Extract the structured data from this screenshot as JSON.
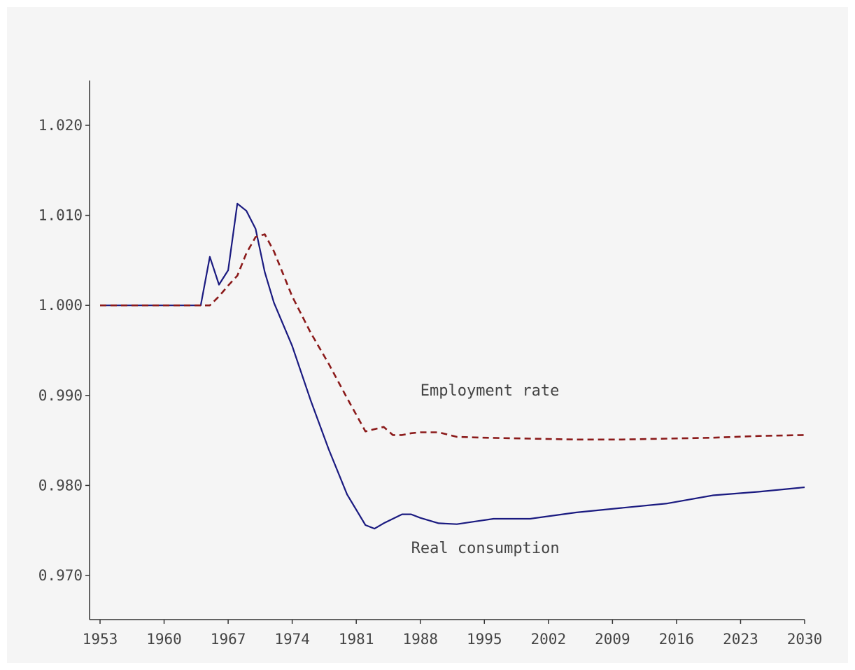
{
  "chart_data": {
    "type": "line",
    "title": "",
    "xlabel": "",
    "ylabel": "",
    "xlim": [
      1952,
      2031
    ],
    "ylim": [
      0.965,
      1.025
    ],
    "xticks": [
      1953,
      1960,
      1967,
      1974,
      1981,
      1988,
      1995,
      2002,
      2009,
      2016,
      2023,
      2030
    ],
    "yticks": [
      0.97,
      0.98,
      0.99,
      1.0,
      1.01,
      1.02
    ],
    "ytick_labels": [
      "0.970",
      "0.980",
      "0.990",
      "1.000",
      "1.010",
      "1.020"
    ],
    "grid": false,
    "legend": "none",
    "series": [
      {
        "name": "Real consumption",
        "color": "#1a1a80",
        "style": "solid",
        "x": [
          1953,
          1964,
          1965,
          1966,
          1967,
          1968,
          1969,
          1970,
          1971,
          1972,
          1974,
          1976,
          1978,
          1980,
          1982,
          1983,
          1984,
          1986,
          1987,
          1988,
          1990,
          1992,
          1994,
          1996,
          2000,
          2005,
          2010,
          2015,
          2020,
          2025,
          2030
        ],
        "values": [
          1.0,
          1.0,
          1.0054,
          1.0023,
          1.0039,
          1.0113,
          1.0105,
          1.0085,
          1.0037,
          1.0003,
          0.9955,
          0.9895,
          0.984,
          0.979,
          0.9756,
          0.9752,
          0.9758,
          0.9768,
          0.9768,
          0.9764,
          0.9758,
          0.9757,
          0.976,
          0.9763,
          0.9763,
          0.977,
          0.9775,
          0.978,
          0.9789,
          0.9793,
          0.9798
        ]
      },
      {
        "name": "Employment rate",
        "color": "#8b1a1a",
        "style": "dashed",
        "x": [
          1953,
          1964,
          1965,
          1966,
          1967,
          1968,
          1969,
          1970,
          1971,
          1972,
          1974,
          1976,
          1978,
          1980,
          1982,
          1984,
          1985,
          1986,
          1987,
          1988,
          1990,
          1992,
          1995,
          2000,
          2005,
          2010,
          2015,
          2020,
          2025,
          2030
        ],
        "values": [
          1.0,
          1.0,
          1.0,
          1.001,
          1.0022,
          1.0033,
          1.0058,
          1.0076,
          1.0079,
          1.006,
          1.001,
          0.997,
          0.9935,
          0.9897,
          0.986,
          0.9865,
          0.9856,
          0.9856,
          0.9858,
          0.9859,
          0.9859,
          0.9854,
          0.9853,
          0.9852,
          0.9851,
          0.9851,
          0.9852,
          0.9853,
          0.9855,
          0.9856
        ]
      }
    ],
    "annotations": [
      {
        "text": "Employment rate",
        "x": 1988,
        "y": 0.99
      },
      {
        "text": "Real consumption",
        "x": 1987,
        "y": 0.9725
      }
    ]
  }
}
